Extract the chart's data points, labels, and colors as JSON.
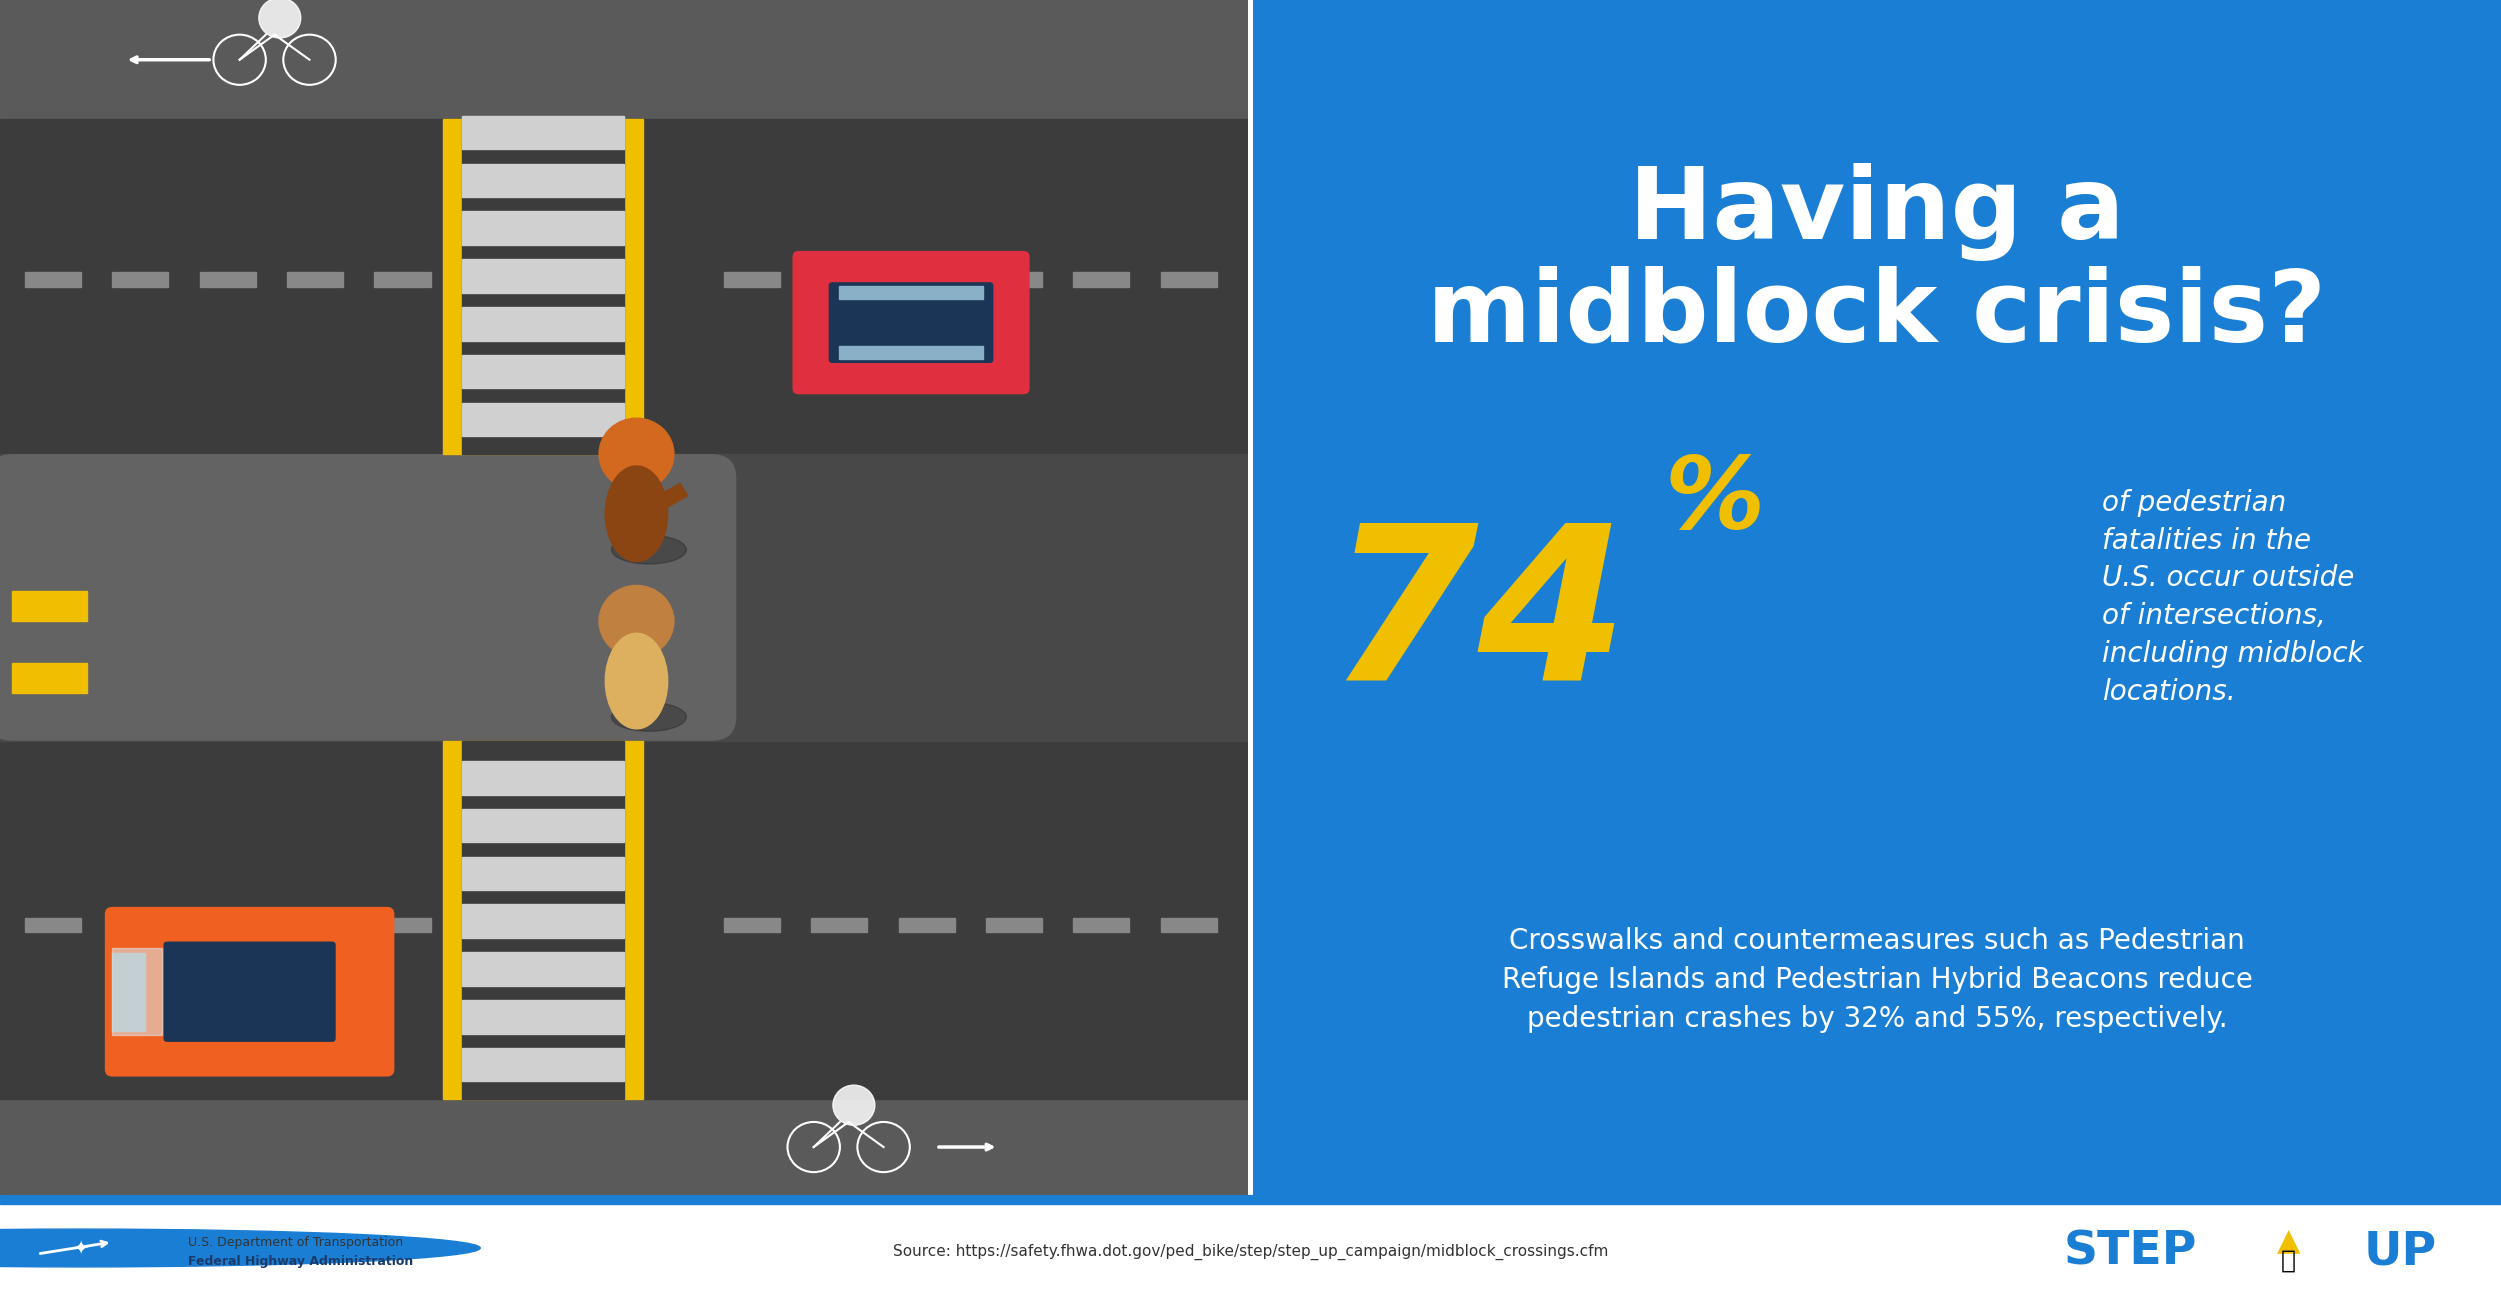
{
  "bg_color_left": "#484848",
  "bg_color_right": "#1a7fd4",
  "road_dark": "#383838",
  "road_medium": "#4a4a4a",
  "sidewalk_color": "#5a5a5a",
  "median_color": "#606060",
  "median_island_color": "#6e6e6e",
  "crosswalk_stripe": "#c8c8c8",
  "crosswalk_yellow": "#f0c000",
  "lane_dash_color": "#aaaaaa",
  "yellow_stripe": "#f0c000",
  "car_red_body": "#e03040",
  "car_red_roof": "#1a3555",
  "car_orange_body": "#f06020",
  "car_orange_roof": "#1a3555",
  "car_orange_light": "#c8c8c8",
  "title_text": "Having a\nmidblock crisis?",
  "title_color": "#ffffff",
  "big_number": "74",
  "big_number_color": "#f0c000",
  "percent_sign": "%",
  "stat_text": "of pedestrian\nfatalities in the\nU.S. occur outside\nof intersections,\nincluding midblock\nlocations.",
  "stat_text_color": "#ffffff",
  "body_text": "Crosswalks and countermeasures such as Pedestrian\nRefuge Islands and Pedestrian Hybrid Beacons reduce\npedestrian crashes by 32% and 55%, respectively.",
  "body_text_color": "#ffffff",
  "footer_source": "Source: https://safety.fhwa.dot.gov/ped_bike/step/step_up_campaign/midblock_crossings.cfm",
  "footer_dot_text1": "U.S. Department of Transportation",
  "footer_dot_text2": "Federal Highway Administration",
  "step_up_blue": "#1a7fd4",
  "step_up_yellow": "#f0c000",
  "footer_bg": "#ffffff",
  "footer_line": "#1a7fd4"
}
